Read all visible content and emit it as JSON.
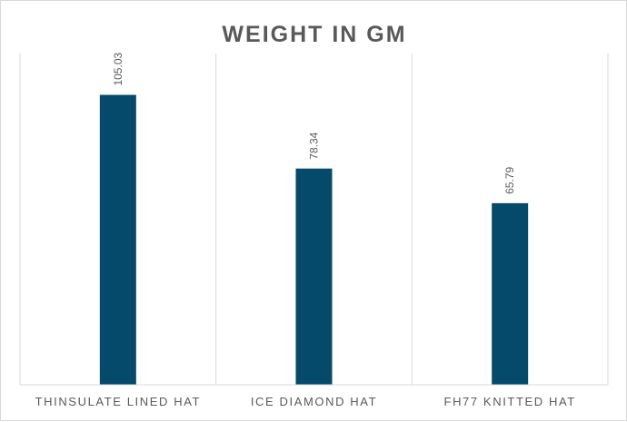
{
  "chart_data": {
    "type": "bar",
    "title": "WEIGHT IN GM",
    "categories": [
      "THINSULATE LINED HAT",
      "ICE DIAMOND HAT",
      "FH77 KNITTED HAT"
    ],
    "values": [
      105.03,
      78.34,
      65.79
    ],
    "data_labels": [
      "105.03",
      "78.34",
      "65.79"
    ],
    "xlabel": "",
    "ylabel": "",
    "ylim": [
      0,
      120
    ],
    "bar_color": "#054a6b",
    "grid": "vertical category separators",
    "legend": "none"
  }
}
